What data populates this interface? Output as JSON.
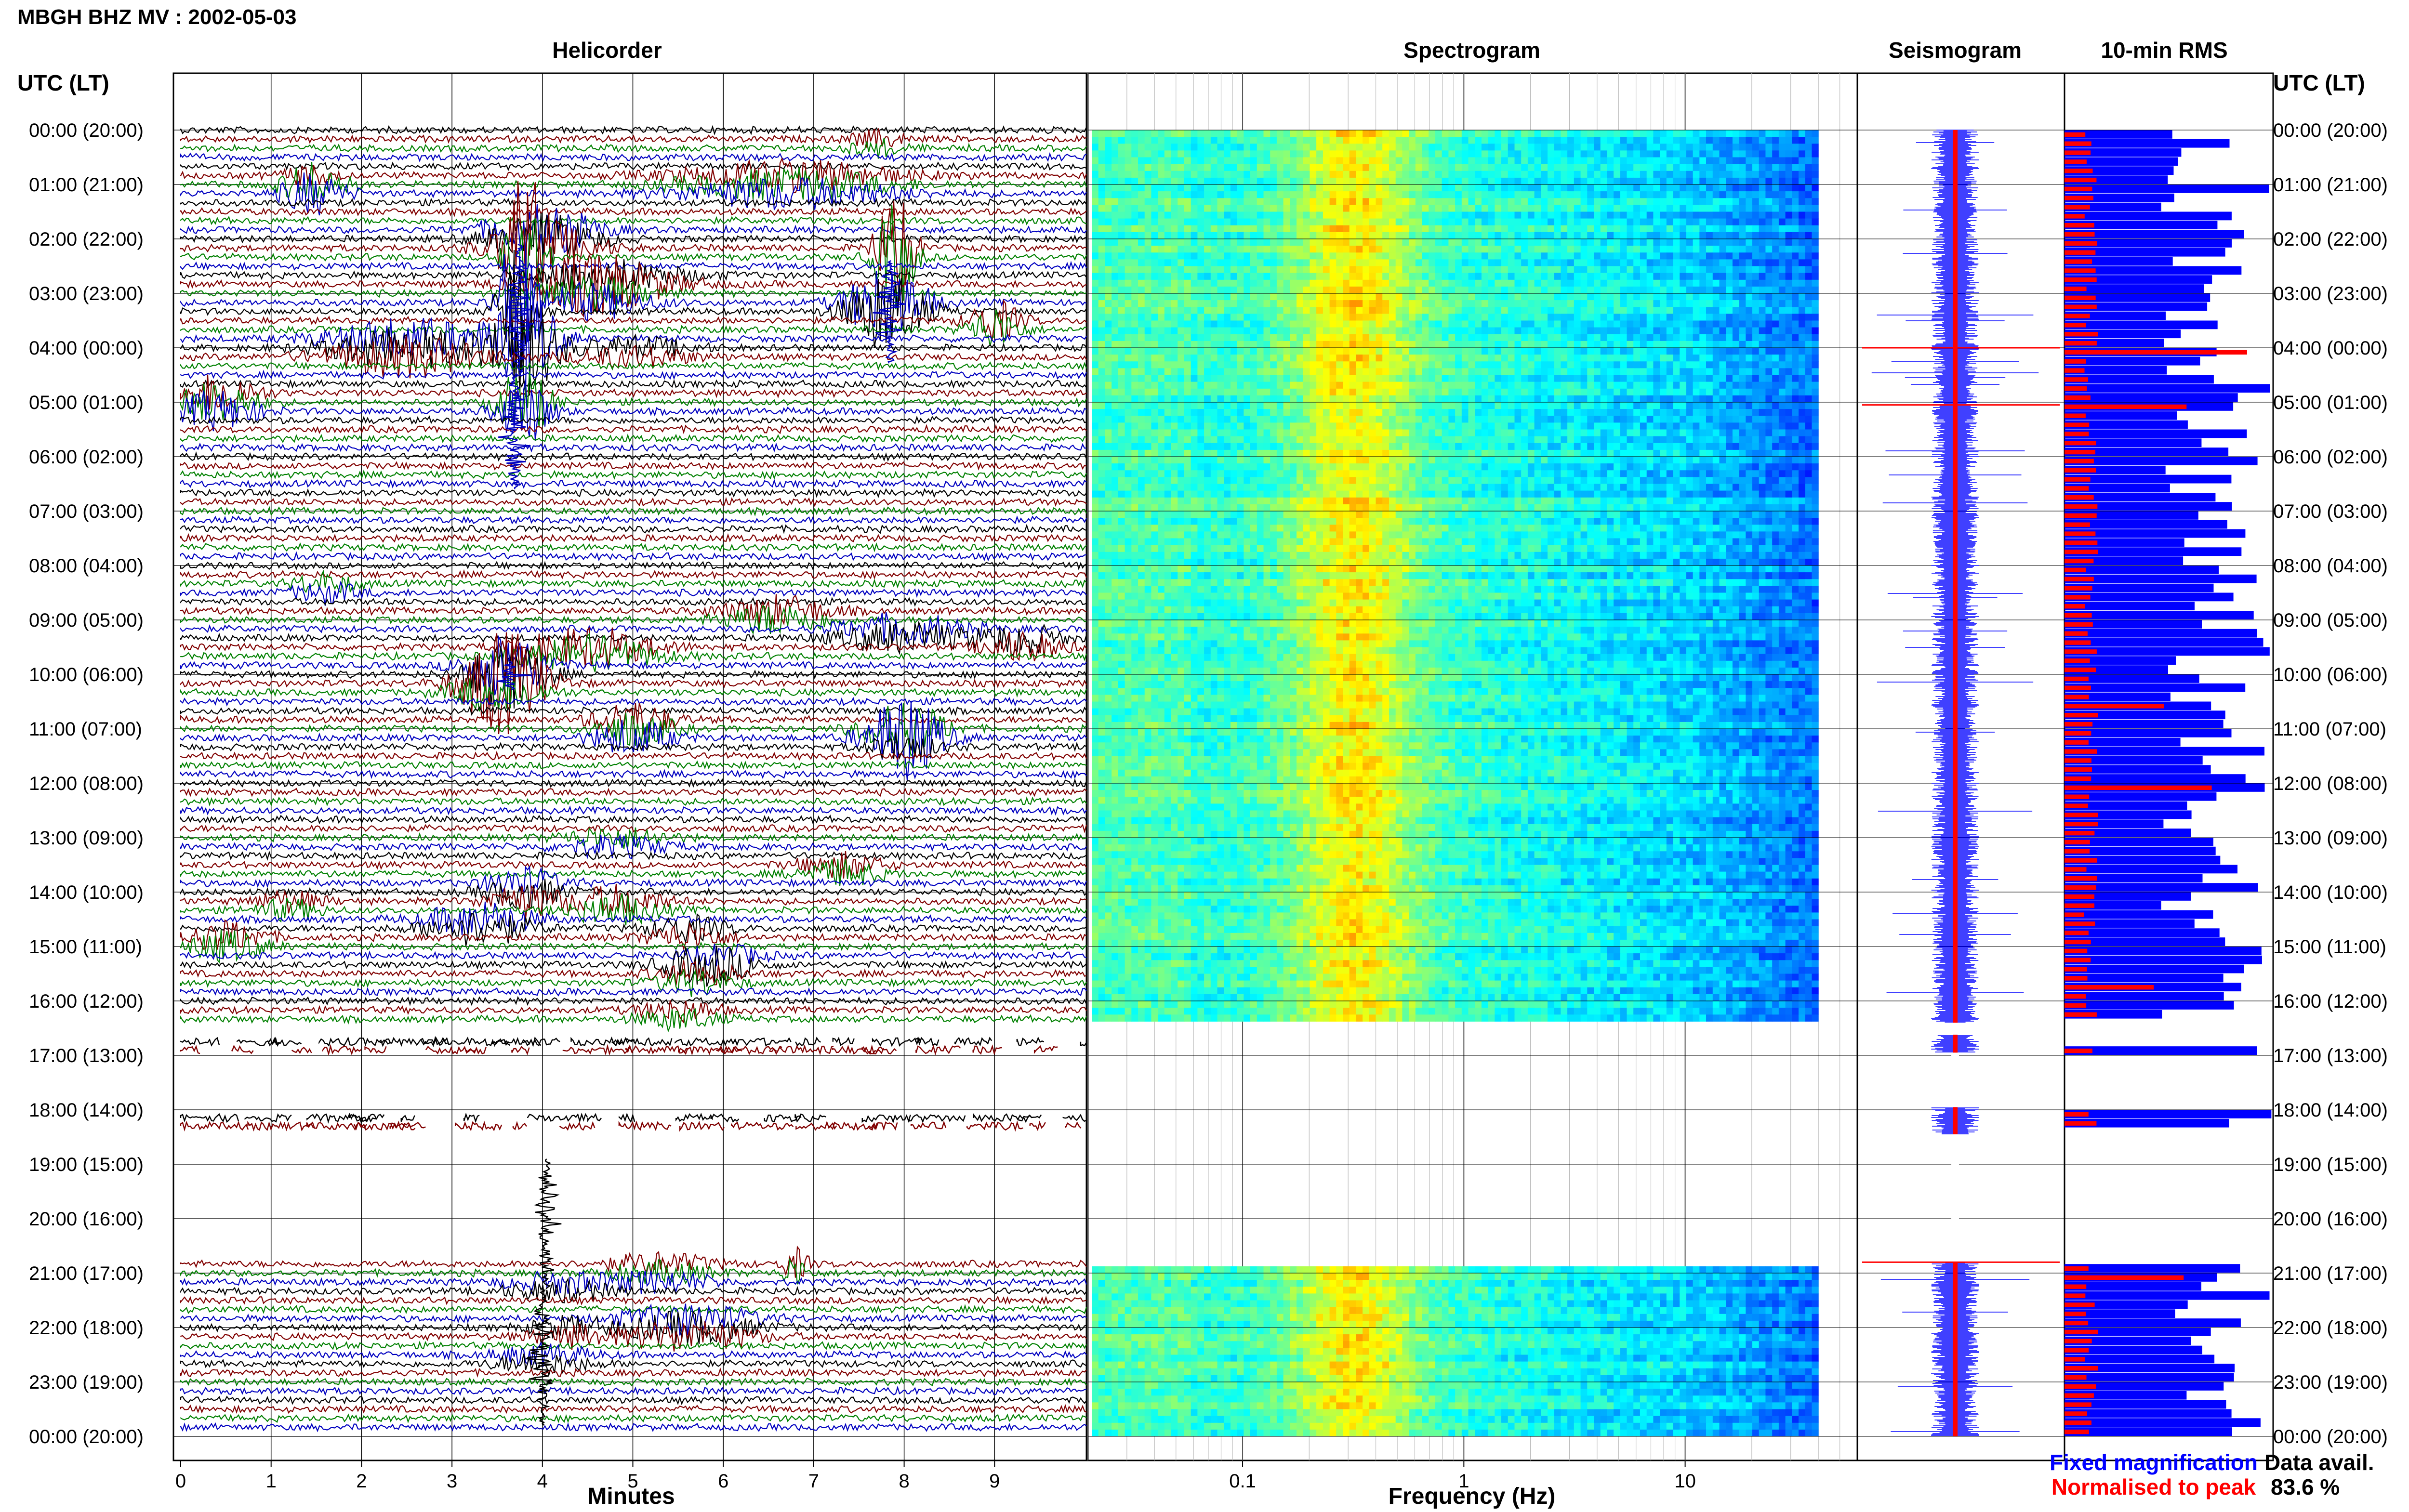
{
  "title": "MBGH BHZ MV : 2002-05-03",
  "time_axis_label": "UTC (LT)",
  "panels": {
    "helicorder": "Helicorder",
    "spectrogram": "Spectrogram",
    "seismogram": "Seismogram",
    "rms": "10-min RMS"
  },
  "axes": {
    "minutes_label": "Minutes",
    "frequency_label": "Frequency (Hz)"
  },
  "legend": {
    "fixed": "Fixed magnification",
    "normalised": "Normalised to peak",
    "fixed_color": "#0000ff",
    "normalised_color": "#ff0000"
  },
  "availability": {
    "label": "Data avail.",
    "value": "83.6 %"
  },
  "colors": {
    "trace_black": "#000000",
    "trace_red": "#800000",
    "trace_green": "#008000",
    "trace_blue": "#0000c0",
    "rms_fixed": "#0000ff",
    "rms_normalised": "#ff0000"
  },
  "chart_data": {
    "type": "heatmap",
    "time_labels": [
      "00:00 (20:00)",
      "01:00 (21:00)",
      "02:00 (22:00)",
      "03:00 (23:00)",
      "04:00 (00:00)",
      "05:00 (01:00)",
      "06:00 (02:00)",
      "07:00 (03:00)",
      "08:00 (04:00)",
      "09:00 (05:00)",
      "10:00 (06:00)",
      "11:00 (07:00)",
      "12:00 (08:00)",
      "13:00 (09:00)",
      "14:00 (10:00)",
      "15:00 (11:00)",
      "16:00 (12:00)",
      "17:00 (13:00)",
      "18:00 (14:00)",
      "19:00 (15:00)",
      "20:00 (16:00)",
      "21:00 (17:00)",
      "22:00 (18:00)",
      "23:00 (19:00)",
      "00:00 (20:00)"
    ],
    "helicorder": {
      "x_ticks": [
        "0",
        "1",
        "2",
        "3",
        "4",
        "5",
        "6",
        "7",
        "8",
        "9"
      ],
      "xlim": [
        0,
        10
      ],
      "x_unit": "minutes",
      "data_gaps_utc_hours": [
        [
          16.5,
          20.67
        ]
      ]
    },
    "spectrogram": {
      "x_ticks": [
        "0.1",
        "1",
        "10"
      ],
      "x_tick_values": [
        0.1,
        1,
        10
      ],
      "xlim": [
        0.02,
        60
      ],
      "log_scale": true,
      "data_until_frequency_hz": 40,
      "data_gaps_utc_hours": [
        [
          16.33,
          20.83
        ]
      ]
    },
    "availability_percent": 83.6
  }
}
